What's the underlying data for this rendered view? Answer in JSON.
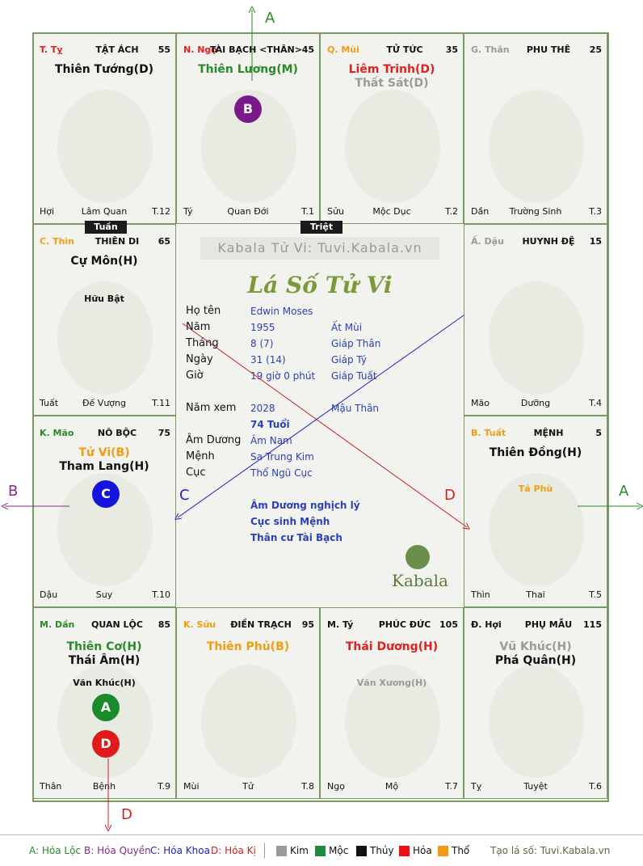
{
  "cells": [
    {
      "id": "ty",
      "can": "T. Tỵ",
      "can_color": "#e0201f",
      "house": "TẬT ÁCH",
      "num": "55",
      "stars": [
        {
          "t": "Thiên Tướng(D)",
          "c": "c-black"
        }
      ],
      "minor": [],
      "foot": [
        "Hợi",
        "Lâm Quan",
        "T.12"
      ]
    },
    {
      "id": "ngo",
      "can": "N. Ngọ",
      "can_color": "#e0201f",
      "house": "TÀI BẠCH <THÂN>",
      "num": "45",
      "stars": [
        {
          "t": "Thiên Lương(M)",
          "c": "c-green"
        }
      ],
      "minor": [],
      "foot": [
        "Tý",
        "Quan Đới",
        "T.1"
      ]
    },
    {
      "id": "mui",
      "can": "Q. Mùi",
      "can_color": "#f39c12",
      "house": "TỬ TỨC",
      "num": "35",
      "stars": [
        {
          "t": "Liêm Trinh(D)",
          "c": "c-red"
        },
        {
          "t": "Thất Sát(D)",
          "c": "c-gray"
        }
      ],
      "minor": [],
      "foot": [
        "Sửu",
        "Mộc Dục",
        "T.2"
      ]
    },
    {
      "id": "than",
      "can": "G. Thân",
      "can_color": "#9a9a9a",
      "house": "PHU THÊ",
      "num": "25",
      "stars": [],
      "minor": [],
      "foot": [
        "Dần",
        "Trường Sinh",
        "T.3"
      ]
    },
    {
      "id": "thin",
      "can": "C. Thìn",
      "can_color": "#f39c12",
      "house": "THIÊN DI",
      "num": "65",
      "stars": [
        {
          "t": "Cự Môn(H)",
          "c": "c-black"
        }
      ],
      "minor": [
        {
          "t": "Hữu Bật",
          "c": "c-black"
        }
      ],
      "foot": [
        "Tuất",
        "Đế Vượng",
        "T.11"
      ]
    },
    {
      "id": "dau",
      "can": "Ấ. Dậu",
      "can_color": "#9a9a9a",
      "house": "HUYNH ĐỆ",
      "num": "15",
      "stars": [],
      "minor": [],
      "foot": [
        "Mão",
        "Dưỡng",
        "T.4"
      ]
    },
    {
      "id": "mao",
      "can": "K. Mão",
      "can_color": "#2a8a2a",
      "house": "NÔ BỘC",
      "num": "75",
      "stars": [
        {
          "t": "Tử Vi(B)",
          "c": "c-orange"
        },
        {
          "t": "Tham Lang(H)",
          "c": "c-black"
        }
      ],
      "minor": [],
      "foot": [
        "Dậu",
        "Suy",
        "T.10"
      ]
    },
    {
      "id": "tuat",
      "can": "B. Tuất",
      "can_color": "#f39c12",
      "house": "MỆNH",
      "num": "5",
      "stars": [
        {
          "t": "Thiên Đồng(H)",
          "c": "c-black"
        }
      ],
      "minor": [
        {
          "t": "Tả Phù",
          "c": "c-orange"
        }
      ],
      "foot": [
        "Thìn",
        "Thai",
        "T.5"
      ]
    },
    {
      "id": "dan",
      "can": "M. Dần",
      "can_color": "#2a8a2a",
      "house": "QUAN LỘC",
      "num": "85",
      "stars": [
        {
          "t": "Thiên Cơ(H)",
          "c": "c-green"
        },
        {
          "t": "Thái Âm(H)",
          "c": "c-black"
        }
      ],
      "minor": [
        {
          "t": "Văn Khúc(H)",
          "c": "c-black"
        }
      ],
      "foot": [
        "Thân",
        "Bệnh",
        "T.9"
      ]
    },
    {
      "id": "suu",
      "can": "K. Sửu",
      "can_color": "#f39c12",
      "house": "ĐIỀN TRẠCH",
      "num": "95",
      "stars": [
        {
          "t": "Thiên Phủ(B)",
          "c": "c-orange"
        }
      ],
      "minor": [],
      "foot": [
        "Mùi",
        "Tử",
        "T.8"
      ]
    },
    {
      "id": "tyy",
      "can": "M. Tý",
      "can_color": "#111111",
      "house": "PHÚC ĐỨC",
      "num": "105",
      "stars": [
        {
          "t": "Thái Dương(H)",
          "c": "c-red"
        }
      ],
      "minor": [
        {
          "t": "Văn Xương(H)",
          "c": "c-gray"
        }
      ],
      "foot": [
        "Ngọ",
        "Mộ",
        "T.7"
      ]
    },
    {
      "id": "hoi",
      "can": "Đ. Hợi",
      "can_color": "#111111",
      "house": "PHỤ MẪU",
      "num": "115",
      "stars": [
        {
          "t": "Vũ Khúc(H)",
          "c": "c-gray"
        },
        {
          "t": "Phá Quân(H)",
          "c": "c-black"
        }
      ],
      "minor": [],
      "foot": [
        "Tỵ",
        "Tuyệt",
        "T.6"
      ]
    }
  ],
  "tags": {
    "tuan": "Tuần",
    "triet": "Triệt"
  },
  "center": {
    "watermark": "Kabala Tử Vi: Tuvi.Kabala.vn",
    "title": "Lá Số Tử Vi",
    "rows": [
      {
        "label": "Họ tên",
        "v1": "Edwin Moses",
        "v2": ""
      },
      {
        "label": "Năm",
        "v1": "1955",
        "v2": "Ất Mùi"
      },
      {
        "label": "Tháng",
        "v1": "8  (7)",
        "v2": "Giáp Thân"
      },
      {
        "label": "Ngày",
        "v1": "31  (14)",
        "v2": "Giáp Tý"
      },
      {
        "label": "Giờ",
        "v1": "19 giờ 0 phút",
        "v2": "Giáp Tuất"
      },
      {
        "label": "Năm xem",
        "v1": "2028",
        "v2": "Mậu Thân"
      },
      {
        "label": "",
        "v1": "74 Tuổi",
        "v2": ""
      },
      {
        "label": "Âm Dương",
        "v1": "Âm Nam",
        "v2": ""
      },
      {
        "label": "Mệnh",
        "v1": "Sa Trung Kim",
        "v2": ""
      },
      {
        "label": "Cục",
        "v1": "Thổ Ngũ Cục",
        "v2": ""
      }
    ],
    "notes": [
      "Âm Dương nghịch lý",
      "Cục sinh Mệnh",
      "Thân cư Tài Bạch"
    ],
    "brand": "Kabala"
  },
  "badges": {
    "a": "A",
    "b": "B",
    "c": "C",
    "d": "D"
  },
  "legend": {
    "a": "A: Hóa Lộc",
    "b": "B: Hóa Quyền",
    "c": "C: Hóa Khoa",
    "d": "D: Hóa Kị",
    "elements": [
      {
        "name": "Kim",
        "color": "#9a9a9a"
      },
      {
        "name": "Mộc",
        "color": "#1e8a3a"
      },
      {
        "name": "Thủy",
        "color": "#111111"
      },
      {
        "name": "Hỏa",
        "color": "#ee1111"
      },
      {
        "name": "Thổ",
        "color": "#f39c12"
      }
    ],
    "site": "Tạo lá số: Tuvi.Kabala.vn"
  }
}
